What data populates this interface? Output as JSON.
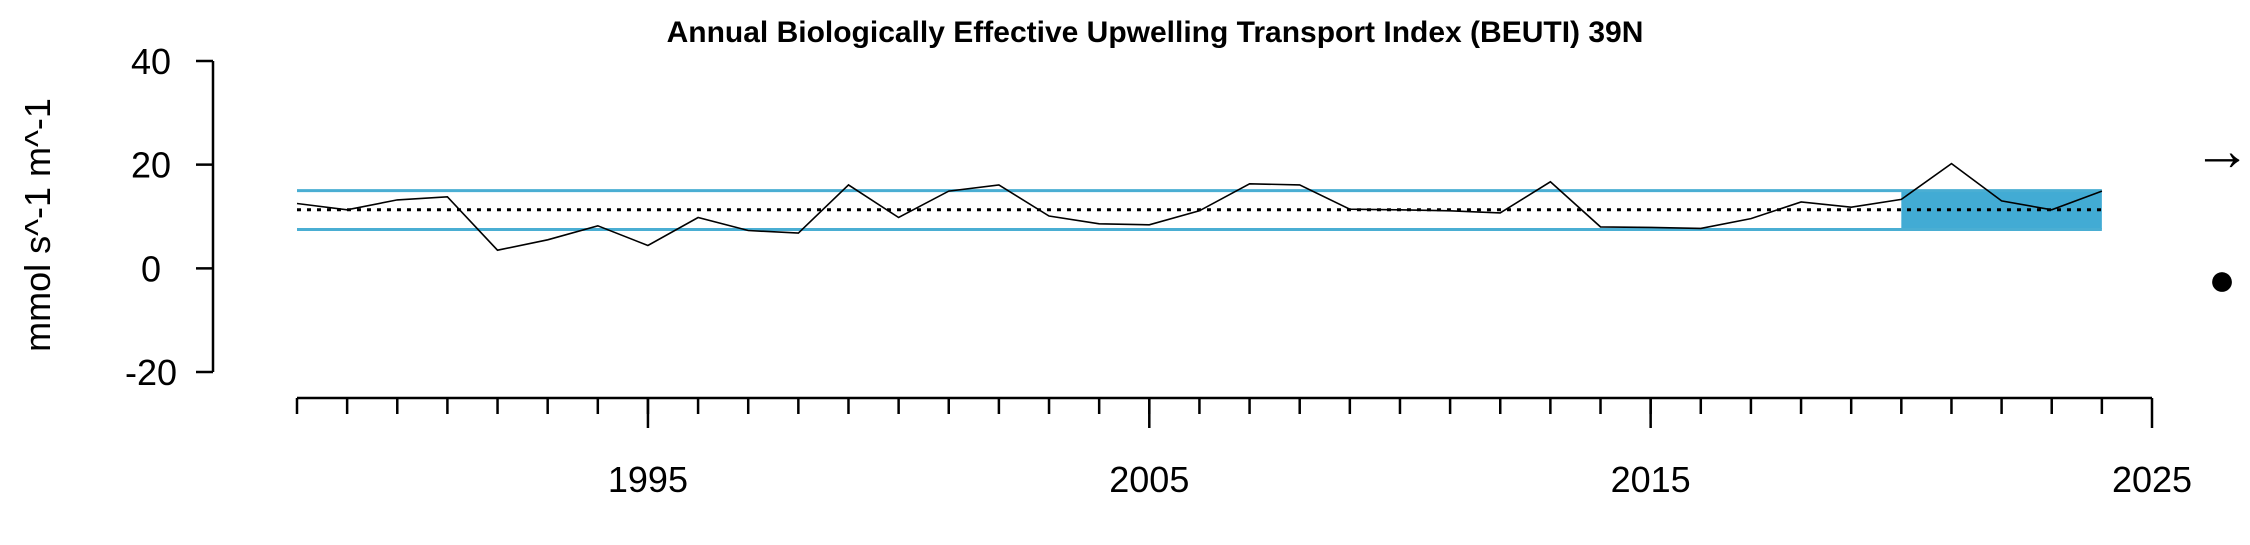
{
  "chart_data": {
    "type": "line",
    "title": "Annual Biologically Effective Upwelling Transport Index (BEUTI) 39N",
    "xlabel": "",
    "ylabel": "mmol s^-1 m^-1",
    "xlim": [
      1988,
      2025
    ],
    "ylim": [
      -20,
      40
    ],
    "x_ticks_major": [
      "1995",
      "2005",
      "2015",
      "2025"
    ],
    "y_ticks": [
      "40",
      "20",
      "0",
      "-20"
    ],
    "x_major_values": [
      1995,
      2005,
      2015,
      2025
    ],
    "y_tick_values": [
      40,
      20,
      0,
      -20
    ],
    "minor_tick_range": [
      1988,
      2024
    ],
    "grid": false,
    "legend": "none",
    "series": [
      {
        "x": [
          1988,
          1989,
          1990,
          1991,
          1992,
          1993,
          1994,
          1995,
          1996,
          1997,
          1998,
          1999,
          2000,
          2001,
          2002,
          2003,
          2004,
          2005,
          2006,
          2007,
          2008,
          2009,
          2010,
          2011,
          2012,
          2013,
          2014,
          2015,
          2016,
          2017,
          2018,
          2019,
          2020,
          2021,
          2022,
          2023,
          2024
        ],
        "values": [
          12.5,
          11.3,
          13.2,
          13.8,
          3.5,
          5.5,
          8.2,
          4.4,
          9.8,
          7.3,
          6.8,
          16.1,
          9.8,
          14.9,
          16.1,
          10.1,
          8.6,
          8.4,
          11.1,
          16.3,
          16.1,
          11.4,
          11.3,
          11.1,
          10.7,
          16.7,
          8.0,
          7.9,
          7.7,
          9.6,
          12.8,
          11.8,
          13.3,
          20.2,
          13.0,
          11.3,
          14.9
        ]
      }
    ],
    "mean": 11.3,
    "upper_sd": 15.0,
    "lower_sd": 7.5,
    "recent_window": [
      2020,
      2024
    ],
    "trend_symbol": "→",
    "mean_symbol": "●",
    "colors": {
      "sd_lines": "#4aaed3",
      "recent_fill": "#42abd4",
      "series": "#000000",
      "mean_line": "#000000"
    }
  }
}
